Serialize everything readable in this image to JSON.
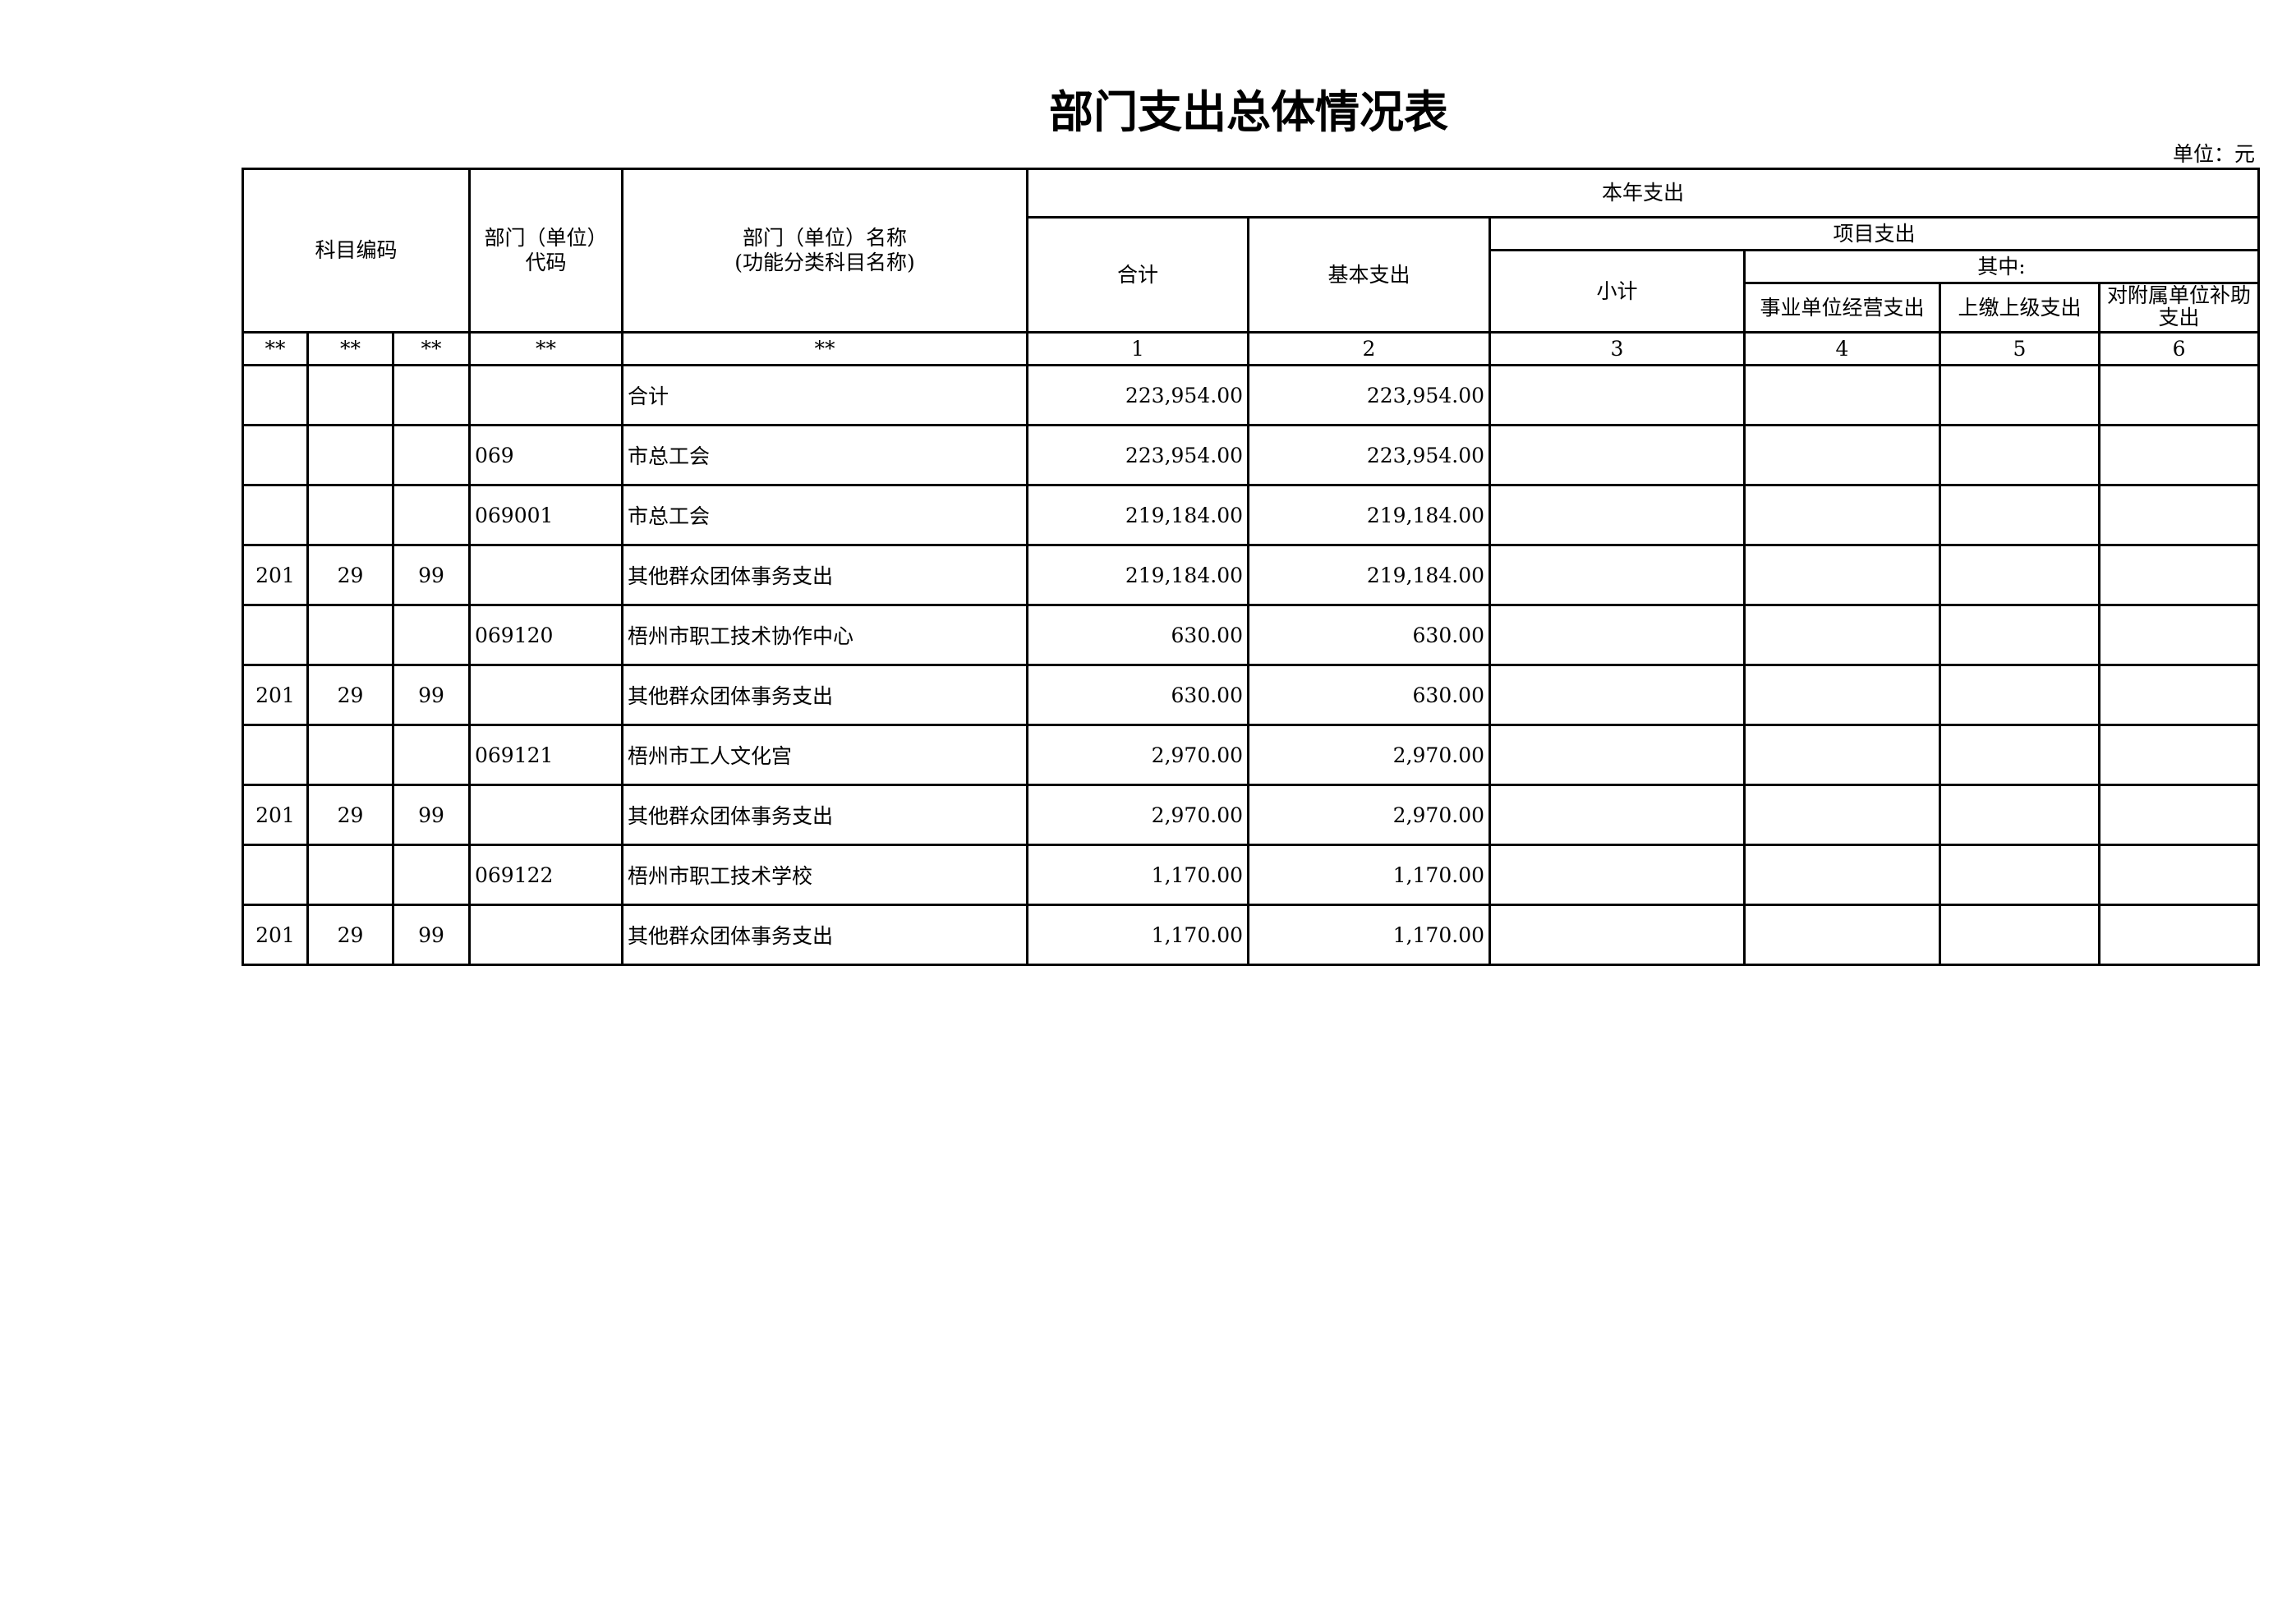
{
  "title": "部门支出总体情况表",
  "unit": "单位：元",
  "headers": {
    "subject_code": "科目编码",
    "dept_code": "部门（单位）代码",
    "dept_name_1": "部门（单位）名称",
    "dept_name_2": "(功能分类科目名称)",
    "year_expense": "本年支出",
    "total": "合计",
    "basic": "基本支出",
    "project": "项目支出",
    "subtotal": "小计",
    "among": "其中:",
    "business": "事业单位经营支出",
    "upper": "上缴上级支出",
    "subsidy": "对附属单位补助支出"
  },
  "index_row": [
    "**",
    "**",
    "**",
    "**",
    "**",
    "1",
    "2",
    "3",
    "4",
    "5",
    "6"
  ],
  "rows": [
    [
      "",
      "",
      "",
      "",
      "合计",
      "223,954.00",
      "223,954.00",
      "",
      "",
      "",
      ""
    ],
    [
      "",
      "",
      "",
      "069",
      "市总工会",
      "223,954.00",
      "223,954.00",
      "",
      "",
      "",
      ""
    ],
    [
      "",
      "",
      "",
      "069001",
      "市总工会",
      "219,184.00",
      "219,184.00",
      "",
      "",
      "",
      ""
    ],
    [
      "201",
      "29",
      "99",
      "",
      "其他群众团体事务支出",
      "219,184.00",
      "219,184.00",
      "",
      "",
      "",
      ""
    ],
    [
      "",
      "",
      "",
      "069120",
      "梧州市职工技术协作中心",
      "630.00",
      "630.00",
      "",
      "",
      "",
      ""
    ],
    [
      "201",
      "29",
      "99",
      "",
      "其他群众团体事务支出",
      "630.00",
      "630.00",
      "",
      "",
      "",
      ""
    ],
    [
      "",
      "",
      "",
      "069121",
      "梧州市工人文化宫",
      "2,970.00",
      "2,970.00",
      "",
      "",
      "",
      ""
    ],
    [
      "201",
      "29",
      "99",
      "",
      "其他群众团体事务支出",
      "2,970.00",
      "2,970.00",
      "",
      "",
      "",
      ""
    ],
    [
      "",
      "",
      "",
      "069122",
      "梧州市职工技术学校",
      "1,170.00",
      "1,170.00",
      "",
      "",
      "",
      ""
    ],
    [
      "201",
      "29",
      "99",
      "",
      "其他群众团体事务支出",
      "1,170.00",
      "1,170.00",
      "",
      "",
      "",
      ""
    ]
  ]
}
